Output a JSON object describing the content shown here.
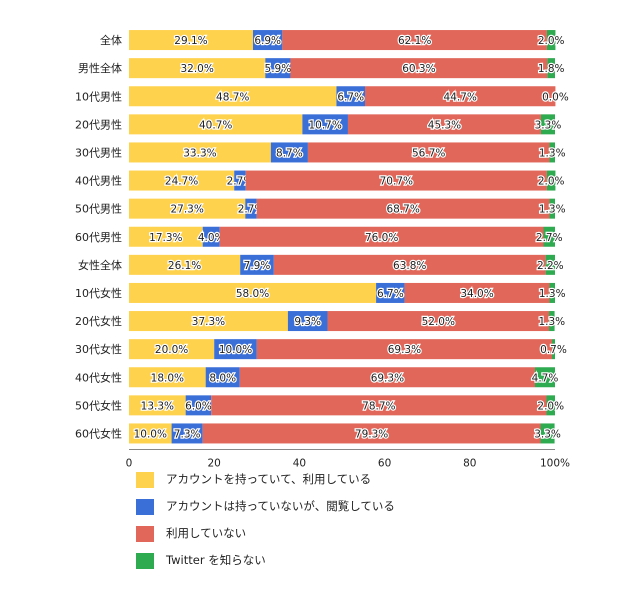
{
  "chart_data": {
    "type": "bar",
    "orientation": "horizontal",
    "stacked": true,
    "categories": [
      "全体",
      "男性全体",
      "10代男性",
      "20代男性",
      "30代男性",
      "40代男性",
      "50代男性",
      "60代男性",
      "女性全体",
      "10代女性",
      "20代女性",
      "30代女性",
      "40代女性",
      "50代女性",
      "60代女性"
    ],
    "series": [
      {
        "name": "アカウントを持っていて、利用している",
        "color": "#FFD24D",
        "values": [
          29.1,
          32.0,
          48.7,
          40.7,
          33.3,
          24.7,
          27.3,
          17.3,
          26.1,
          58.0,
          37.3,
          20.0,
          18.0,
          13.3,
          10.0
        ]
      },
      {
        "name": "アカウントは持っていないが、閲覧している",
        "color": "#3A6FD8",
        "values": [
          6.9,
          5.9,
          6.7,
          10.7,
          8.7,
          2.7,
          2.7,
          4.0,
          7.9,
          6.7,
          9.3,
          10.0,
          8.0,
          6.0,
          7.3
        ]
      },
      {
        "name": "利用していない",
        "color": "#E0675A",
        "values": [
          62.1,
          60.3,
          44.7,
          45.3,
          56.7,
          70.7,
          68.7,
          76.0,
          63.8,
          34.0,
          52.0,
          69.3,
          69.3,
          78.7,
          79.3
        ]
      },
      {
        "name": "Twitter を知らない",
        "color": "#2EAA50",
        "values": [
          2.0,
          1.8,
          0.0,
          3.3,
          1.3,
          2.0,
          1.3,
          2.7,
          2.2,
          1.3,
          1.3,
          0.7,
          4.7,
          2.0,
          3.3
        ]
      }
    ],
    "value_labels": [
      [
        "29.1%",
        "32.0%",
        "48.7%",
        "40.7%",
        "33.3%",
        "24.7%",
        "27.3%",
        "17.3%",
        "26.1%",
        "58.0%",
        "37.3%",
        "20.0%",
        "18.0%",
        "13.3%",
        "10.0%"
      ],
      [
        "6.9%",
        "5.9%",
        "6.7%",
        "10.7%",
        "8.7%",
        "2.7%",
        "2.7%",
        "4.0%",
        "7.9%",
        "6.7%",
        "9.3%",
        "10.0%",
        "8.0%",
        "6.0%",
        "7.3%"
      ],
      [
        "62.1%",
        "60.3%",
        "44.7%",
        "45.3%",
        "56.7%",
        "70.7%",
        "68.7%",
        "76.0%",
        "63.8%",
        "34.0%",
        "52.0%",
        "69.3%",
        "69.3%",
        "78.7%",
        "79.3%"
      ],
      [
        "2.0%",
        "1.8%",
        "0.0%",
        "3.3%",
        "1.3%",
        "2.0%",
        "1.3%",
        "2.7%",
        "2.2%",
        "1.3%",
        "1.3%",
        "0.7%",
        "4.7%",
        "2.0%",
        "3.3%"
      ]
    ],
    "x_ticks": [
      "0",
      "20",
      "40",
      "60",
      "80",
      "100%"
    ],
    "xlim": [
      0,
      100
    ],
    "grid": false,
    "legend_position": "bottom"
  }
}
